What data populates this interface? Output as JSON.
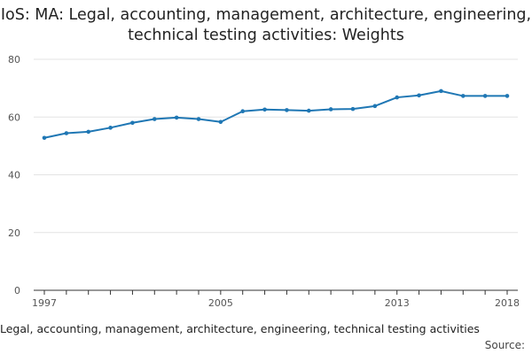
{
  "chart_data": {
    "type": "line",
    "title": "IoS: MA: Legal, accounting, management, architecture, engineering, technical testing activities: Weights",
    "x": [
      1997,
      1998,
      1999,
      2000,
      2001,
      2002,
      2003,
      2004,
      2005,
      2006,
      2007,
      2008,
      2009,
      2010,
      2011,
      2012,
      2013,
      2014,
      2015,
      2016,
      2017,
      2018
    ],
    "x_tick_labels": [
      "1997",
      "2005",
      "2013",
      "2018"
    ],
    "xlim": [
      1997,
      2018
    ],
    "ylim": [
      0,
      80
    ],
    "y_ticks": [
      0,
      20,
      40,
      60,
      80
    ],
    "grid": true,
    "series": [
      {
        "name": "Legal, accounting, management, architecture, engineering, technical testing activities",
        "color": "#1f77b4",
        "values": [
          52.8,
          54.4,
          54.9,
          56.3,
          58.0,
          59.3,
          59.8,
          59.3,
          58.3,
          62.0,
          62.6,
          62.4,
          62.2,
          62.7,
          62.8,
          63.8,
          66.8,
          67.5,
          69.0,
          67.3,
          67.3,
          67.3
        ]
      }
    ],
    "source_label": "Source:"
  },
  "colors": {
    "line": "#1f77b4",
    "grid": "#e3e3e3",
    "axis": "#333333"
  }
}
